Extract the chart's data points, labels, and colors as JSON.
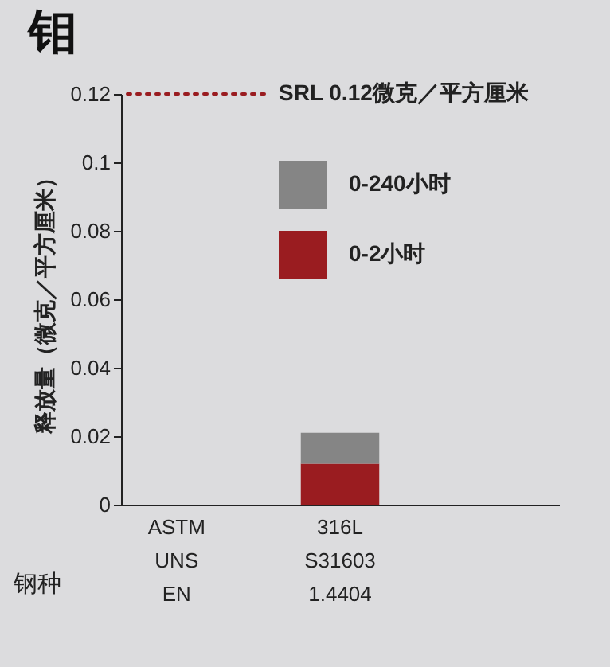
{
  "chart_data": {
    "type": "bar",
    "title": "钼",
    "xlabel": "钢种",
    "ylabel": "释放量（微克／平方厘米）",
    "categories": [
      "ASTM\nUNS\nEN",
      "316L\nS31603\n1.4404",
      null
    ],
    "stacked": true,
    "series": [
      {
        "name": "0-2小时",
        "color": "#9a1c20",
        "values": [
          null,
          0.012,
          null
        ]
      },
      {
        "name": "0-240小时",
        "color": "#858585",
        "values": [
          null,
          0.009,
          null
        ]
      }
    ],
    "ylim": [
      0,
      0.12
    ],
    "yticks": [
      0,
      0.02,
      0.04,
      0.06,
      0.08,
      0.1,
      0.12
    ],
    "ref_lines": [
      {
        "axis": "y",
        "value": 0.12,
        "label": "SRL 0.12微克／平方厘米",
        "color": "#9a1c20",
        "line_style": "dotted"
      }
    ],
    "legend": "top right"
  }
}
